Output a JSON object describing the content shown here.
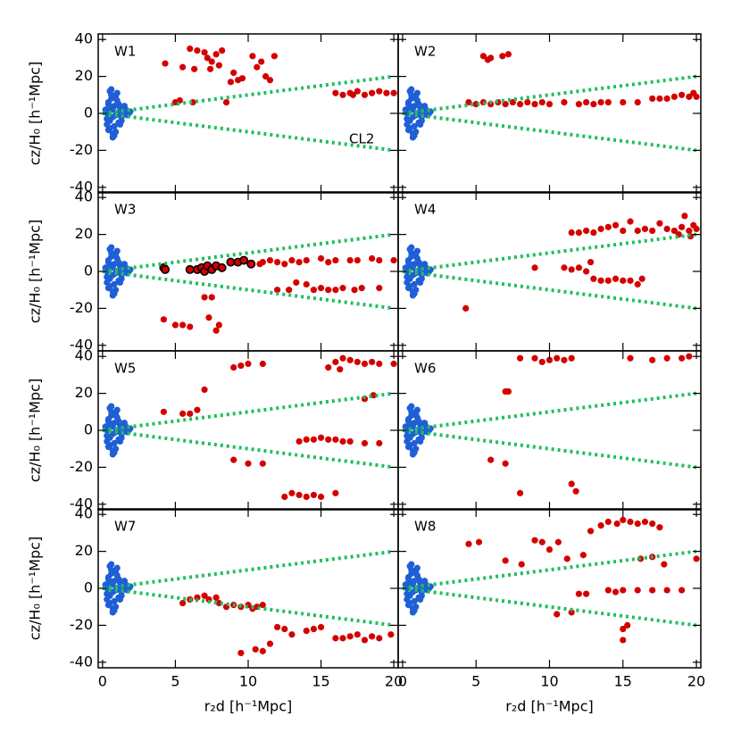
{
  "chart_data": {
    "type": "scatter",
    "xlabel": "r₂d [h⁻¹Mpc]",
    "ylabel": "cz/H₀ [h⁻¹Mpc]",
    "xlim": [
      -0.3,
      20.3
    ],
    "ylim": [
      -43,
      43
    ],
    "xticks": [
      0,
      5,
      10,
      15,
      20
    ],
    "yticks": [
      -40,
      -20,
      0,
      20,
      40
    ],
    "cluster": {
      "color": "#1f5fd6",
      "x": [
        0.2,
        0.3,
        0.4,
        0.5,
        0.6,
        0.7,
        0.8,
        0.9,
        1.0,
        1.1,
        1.2,
        1.3,
        1.4,
        1.5,
        1.6,
        1.7,
        1.8,
        1.9,
        0.3,
        0.5,
        0.7,
        0.9,
        1.1,
        1.3,
        0.4,
        0.6,
        0.8,
        1.0,
        0.5,
        0.7,
        0.3,
        0.9,
        1.2,
        1.5,
        0.6,
        0.8,
        0.4,
        1.0,
        0.7,
        0.5
      ],
      "values": [
        2,
        -3,
        6,
        -8,
        10,
        -11,
        4,
        -1,
        7,
        -5,
        3,
        -2,
        1,
        0,
        2,
        -1,
        0,
        1,
        -6,
        12,
        -13,
        9,
        5,
        -4,
        -9,
        8,
        -7,
        11,
        3,
        -2,
        0,
        -10,
        -6,
        4,
        13,
        -12,
        5,
        0,
        2,
        -4
      ]
    },
    "lines": {
      "color": "#1fbf5f",
      "items": [
        {
          "x": [
            0,
            20
          ],
          "values": [
            0,
            20
          ]
        },
        {
          "x": [
            0,
            20
          ],
          "values": [
            0,
            -20
          ]
        }
      ]
    },
    "panels": [
      {
        "title": "W1",
        "annotation": "CL2",
        "annotation_x": 17.8,
        "annotation_y": -14,
        "series": [
          {
            "color": "#d40000",
            "x": [
              4.3,
              6,
              6.5,
              5.5,
              6.3,
              7,
              7.2,
              7.5,
              7.8,
              8,
              8.2,
              7.4,
              9,
              9.3,
              9.6,
              10.3,
              10.6,
              10.9,
              11.2,
              11.5,
              11.8,
              8.8,
              5,
              5.3,
              6.2,
              8.5,
              16,
              16.5,
              17,
              17.5,
              18,
              18.5,
              19,
              19.5,
              20,
              17.2
            ],
            "values": [
              27,
              35,
              34,
              25,
              24,
              33,
              30,
              28,
              32,
              26,
              34,
              24,
              22,
              18,
              19,
              31,
              25,
              28,
              20,
              18,
              31,
              17,
              6,
              7,
              6,
              6,
              11,
              10,
              11,
              12,
              10,
              11,
              12,
              11,
              11,
              10
            ]
          }
        ]
      },
      {
        "title": "W2",
        "series": [
          {
            "color": "#d40000",
            "x": [
              5.5,
              6,
              6.8,
              7.2,
              5.8,
              4.5,
              5,
              5.5,
              6,
              6.5,
              7,
              7.5,
              8,
              8.5,
              9,
              9.5,
              10,
              11,
              12,
              12.5,
              13,
              13.5,
              14,
              15,
              16,
              17,
              17.5,
              18,
              18.5,
              19,
              19.5,
              20,
              19.8
            ],
            "values": [
              31,
              30,
              31,
              32,
              29,
              6,
              5,
              6,
              5,
              6,
              5,
              6,
              5,
              6,
              5,
              6,
              5,
              6,
              5,
              6,
              5,
              6,
              6,
              6,
              6,
              8,
              8,
              8,
              9,
              10,
              9,
              9,
              11
            ]
          }
        ]
      },
      {
        "title": "W3",
        "series": [
          {
            "color": "#d40000",
            "edgecolor": "#000000",
            "x": [
              4.2,
              4.3,
              6,
              6.5,
              6.8,
              7,
              7.2,
              7.5,
              7.8,
              8.2,
              8.8,
              9.3,
              9.7,
              10.2
            ],
            "values": [
              2,
              1,
              1,
              1,
              2,
              0,
              3,
              1,
              3,
              2,
              5,
              5,
              6,
              4
            ]
          },
          {
            "color": "#d40000",
            "x": [
              10.8,
              11,
              11.5,
              12,
              12.5,
              13,
              13.5,
              14,
              15,
              15.5,
              16,
              17,
              17.5,
              18.5,
              19,
              20,
              12,
              12.8,
              13.3,
              14,
              15,
              15.5,
              16,
              16.5,
              17.3,
              17.8,
              19,
              14.5,
              4.2,
              5,
              5.5,
              6,
              7,
              7.5,
              7.3,
              8,
              7.8
            ],
            "values": [
              4,
              5,
              6,
              5,
              4,
              6,
              5,
              6,
              7,
              5,
              6,
              6,
              6,
              7,
              6,
              6,
              -10,
              -10,
              -6,
              -7,
              -9,
              -10,
              -10,
              -9,
              -10,
              -9,
              -9,
              -10,
              -26,
              -29,
              -29,
              -30,
              -14,
              -14,
              -25,
              -29,
              -32
            ]
          }
        ]
      },
      {
        "title": "W4",
        "series": [
          {
            "color": "#d40000",
            "x": [
              11.5,
              12,
              12.5,
              13,
              13.5,
              14,
              14.5,
              15,
              15.5,
              16,
              16.5,
              17,
              17.5,
              18,
              18.5,
              19,
              19.2,
              19.5,
              19.8,
              20,
              18.8,
              19.6,
              9,
              11,
              11.5,
              12,
              12.5,
              13,
              13.5,
              14,
              14.5,
              15,
              15.5,
              16,
              16.3,
              12.8,
              4.3
            ],
            "values": [
              21,
              21,
              22,
              21,
              23,
              24,
              25,
              22,
              27,
              22,
              23,
              22,
              26,
              23,
              22,
              24,
              30,
              22,
              25,
              23,
              20,
              19,
              2,
              2,
              1,
              2,
              0,
              -4,
              -5,
              -5,
              -4,
              -5,
              -5,
              -7,
              -4,
              5,
              -20
            ]
          }
        ]
      },
      {
        "title": "W5",
        "series": [
          {
            "color": "#d40000",
            "x": [
              4.2,
              5.5,
              6,
              6.5,
              7,
              9,
              9.5,
              10,
              11,
              15.5,
              16,
              16.5,
              17,
              17.5,
              18,
              18.5,
              19,
              20,
              16.3,
              18,
              18.6,
              14,
              14.5,
              15,
              15.5,
              16,
              16.5,
              17,
              18,
              19,
              13.5,
              9,
              10,
              11,
              12.5,
              13,
              13.5,
              14,
              14.5,
              15,
              16
            ],
            "values": [
              10,
              9,
              9,
              11,
              22,
              34,
              35,
              36,
              36,
              34,
              37,
              39,
              38,
              37,
              36,
              37,
              36,
              36,
              33,
              17,
              19,
              -5,
              -5,
              -4,
              -5,
              -5,
              -6,
              -6,
              -7,
              -7,
              -6,
              -16,
              -18,
              -18,
              -36,
              -34,
              -35,
              -36,
              -35,
              -36,
              -34
            ]
          }
        ]
      },
      {
        "title": "W6",
        "series": [
          {
            "color": "#d40000",
            "x": [
              8,
              9,
              9.5,
              10,
              10.5,
              11,
              11.5,
              15.5,
              17,
              18,
              19,
              19.5,
              7,
              7.2,
              6,
              7,
              8,
              11.5,
              11.8
            ],
            "values": [
              39,
              39,
              37,
              38,
              39,
              38,
              39,
              39,
              38,
              39,
              39,
              40,
              21,
              21,
              -16,
              -18,
              -34,
              -29,
              -33
            ]
          }
        ]
      },
      {
        "title": "W7",
        "series": [
          {
            "color": "#d40000",
            "x": [
              5.5,
              6,
              6.5,
              7,
              7.3,
              7.8,
              8,
              8.5,
              9,
              9.5,
              10,
              10.3,
              10.6,
              11,
              12,
              12.5,
              13,
              14,
              14.5,
              15,
              16,
              16.5,
              17,
              17.5,
              18,
              18.5,
              19,
              19.8,
              11.5,
              11,
              9.5,
              10.5
            ],
            "values": [
              -8,
              -6,
              -5,
              -4,
              -6,
              -5,
              -8,
              -10,
              -9,
              -10,
              -9,
              -11,
              -10,
              -9,
              -21,
              -22,
              -25,
              -23,
              -22,
              -21,
              -27,
              -27,
              -26,
              -25,
              -28,
              -26,
              -27,
              -25,
              -30,
              -34,
              -35,
              -33
            ]
          }
        ]
      },
      {
        "title": "W8",
        "series": [
          {
            "color": "#d40000",
            "x": [
              4.5,
              5.2,
              7,
              8.1,
              9,
              9.5,
              10,
              10.6,
              11.2,
              12.3,
              12.8,
              13.5,
              14,
              14.6,
              15,
              15.5,
              16,
              16.5,
              17,
              17.5,
              16.2,
              17,
              17.8,
              20,
              12,
              12.5,
              14,
              14.5,
              15,
              16,
              17,
              18,
              19,
              10.5,
              11.5,
              15,
              15.3,
              15
            ],
            "values": [
              24,
              25,
              15,
              13,
              26,
              25,
              21,
              25,
              16,
              18,
              31,
              34,
              36,
              35,
              37,
              36,
              35,
              36,
              35,
              33,
              16,
              17,
              13,
              16,
              -3,
              -3,
              -1,
              -2,
              -1,
              -1,
              -1,
              -1,
              -1,
              -14,
              -13,
              -22,
              -20,
              -28
            ]
          }
        ]
      }
    ]
  }
}
